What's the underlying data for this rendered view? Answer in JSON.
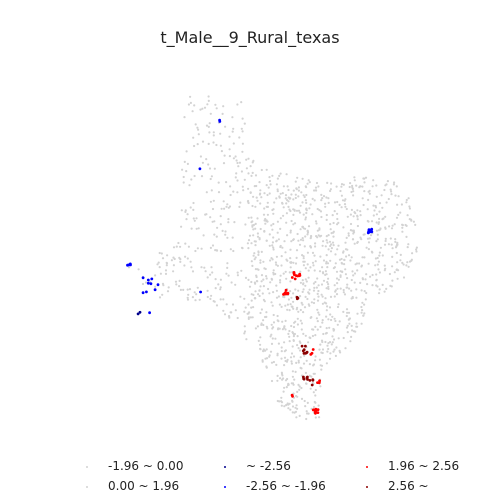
{
  "title": "t_Male__9_Rural_texas",
  "colors": {
    "neutral": "#d3d3d3",
    "cold_strong": "#00008b",
    "cold": "#0000ff",
    "hot": "#ff0000",
    "hot_strong": "#8b0000"
  },
  "legend": {
    "items": [
      {
        "label": "-1.96 ~ 0.00",
        "color": "#d3d3d3"
      },
      {
        "label": "0.00 ~ 1.96",
        "color": "#d3d3d3"
      },
      {
        "label": "~ -2.56",
        "color": "#00008b"
      },
      {
        "label": "-2.56 ~ -1.96",
        "color": "#0000ff"
      },
      {
        "label": "1.96 ~ 2.56",
        "color": "#ff0000"
      },
      {
        "label": "2.56 ~",
        "color": "#8b0000"
      }
    ]
  }
}
